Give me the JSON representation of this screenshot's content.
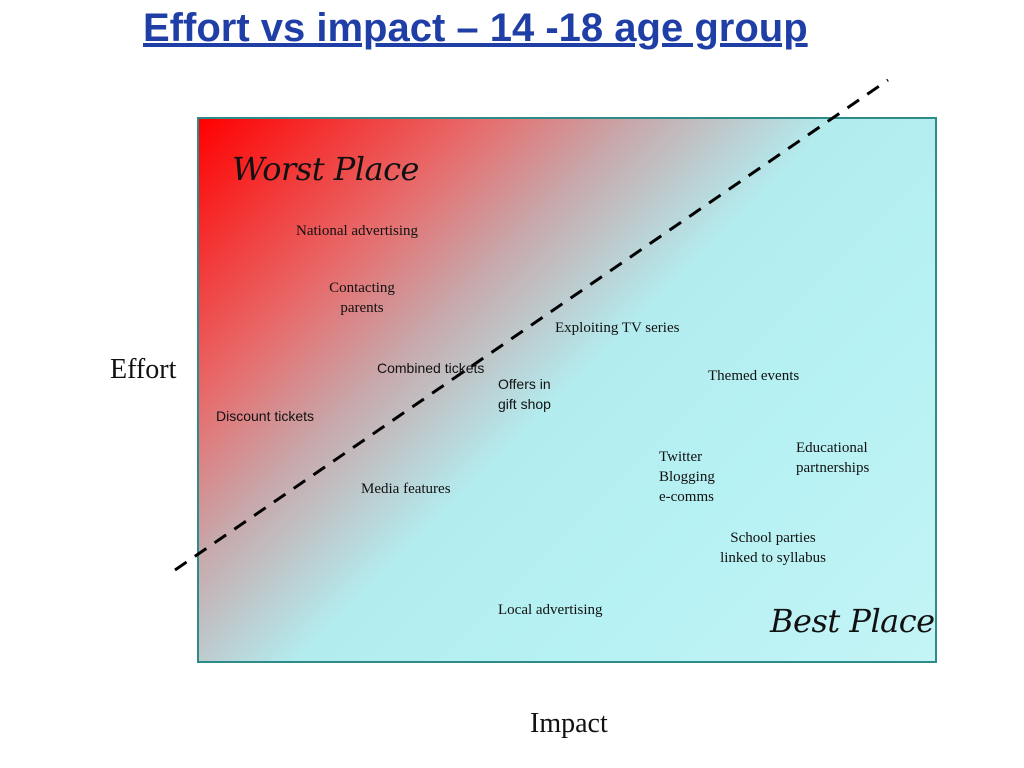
{
  "slide": {
    "title": "Effort vs impact – 14 -18 age group"
  },
  "matrix": {
    "worst_label": "Worst Place",
    "best_label": "Best Place",
    "y_axis_label": "Effort",
    "x_axis_label": "Impact",
    "items": {
      "national_advertising": "National advertising",
      "contacting_parents_1": "Contacting",
      "contacting_parents_2": "parents",
      "exploiting_tv": "Exploiting  TV series",
      "combined_tickets": "Combined tickets",
      "offers_1": "Offers in",
      "offers_2": "gift shop",
      "themed_events": "Themed events",
      "discount_tickets": "Discount tickets",
      "educational_1": "Educational",
      "educational_2": "partnerships",
      "twitter": "Twitter",
      "blogging": "Blogging",
      "ecomms": "e-comms",
      "media_features": "Media features",
      "school_parties_1": "School parties",
      "school_parties_2": "linked to syllabus",
      "local_advertising": "Local advertising"
    }
  }
}
